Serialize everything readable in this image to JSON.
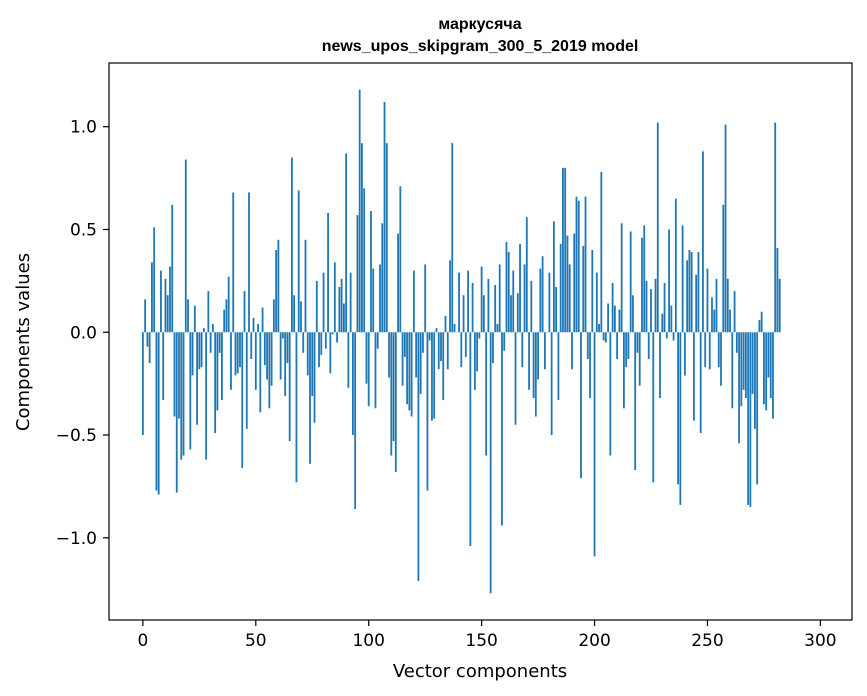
{
  "chart_data": {
    "type": "bar",
    "title": "маркусяча",
    "subtitle": "news_upos_skipgram_300_5_2019 model",
    "xlabel": "Vector components",
    "ylabel": "Components values",
    "xlim": [
      -15,
      314
    ],
    "ylim": [
      -1.4,
      1.31
    ],
    "xticks": [
      0,
      50,
      100,
      150,
      200,
      250,
      300
    ],
    "yticks": [
      -1.0,
      -0.5,
      0.0,
      0.5,
      1.0
    ],
    "ytick_labels": [
      "−1.0",
      "−0.5",
      "0.0",
      "0.5",
      "1.0"
    ],
    "bar_color": "#1f77b4",
    "grid": false,
    "values": [
      -0.5,
      0.16,
      -0.07,
      -0.15,
      0.34,
      0.51,
      -0.77,
      -0.79,
      0.3,
      -0.33,
      0.26,
      0.18,
      0.32,
      0.62,
      -0.41,
      -0.78,
      -0.42,
      -0.62,
      -0.6,
      0.84,
      0.16,
      -0.57,
      -0.21,
      0.13,
      -0.45,
      -0.18,
      -0.17,
      0.02,
      -0.62,
      0.2,
      -0.1,
      0.04,
      -0.49,
      -0.38,
      -0.1,
      -0.33,
      0.11,
      0.16,
      0.27,
      -0.28,
      0.68,
      -0.21,
      -0.2,
      -0.17,
      -0.66,
      0.2,
      -0.47,
      0.68,
      -0.13,
      0.07,
      -0.28,
      0.04,
      -0.39,
      0.12,
      -0.16,
      -0.23,
      -0.37,
      -0.26,
      0.16,
      0.4,
      0.45,
      -0.23,
      -0.03,
      -0.31,
      -0.15,
      -0.53,
      0.85,
      0.18,
      -0.73,
      0.69,
      0.15,
      -0.1,
      0.45,
      -0.21,
      -0.64,
      -0.31,
      -0.44,
      0.25,
      -0.17,
      -0.11,
      0.29,
      -0.08,
      0.58,
      -0.2,
      -0.01,
      0.34,
      -0.05,
      0.22,
      0.26,
      0.14,
      0.87,
      -0.27,
      0.29,
      -0.5,
      -0.86,
      0.57,
      1.18,
      0.92,
      0.7,
      -0.25,
      -0.36,
      0.59,
      0.31,
      -0.37,
      -0.08,
      0.33,
      0.53,
      1.12,
      0.92,
      -0.22,
      -0.6,
      -0.53,
      -0.68,
      0.48,
      0.71,
      -0.26,
      -0.12,
      -0.35,
      -0.38,
      -0.41,
      0.3,
      -0.22,
      -1.21,
      -0.3,
      -0.1,
      0.33,
      -0.77,
      -0.04,
      -0.43,
      -0.42,
      0.02,
      -0.18,
      -0.14,
      -0.33,
      0.08,
      -0.18,
      0.35,
      0.92,
      0.04,
      0.0,
      0.29,
      -0.17,
      0.18,
      -0.12,
      0.3,
      -1.04,
      0.24,
      -0.28,
      -0.19,
      -0.03,
      0.32,
      0.18,
      -0.6,
      0.26,
      -1.27,
      -0.15,
      0.23,
      0.04,
      0.33,
      -0.94,
      -0.09,
      0.44,
      0.39,
      0.18,
      0.3,
      -0.45,
      0.19,
      0.43,
      -0.17,
      0.33,
      0.56,
      -0.28,
      0.25,
      -0.32,
      -0.41,
      -0.23,
      0.31,
      0.37,
      -0.18,
      0.0,
      0.29,
      -0.5,
      0.54,
      0.22,
      -0.33,
      0.43,
      0.8,
      0.8,
      0.47,
      0.33,
      -0.18,
      0.48,
      0.66,
      0.64,
      -0.71,
      0.42,
      0.66,
      -0.13,
      -0.32,
      0.4,
      -1.09,
      0.29,
      0.04,
      0.78,
      -0.04,
      -0.05,
      0.14,
      -0.6,
      0.24,
      0.13,
      -0.13,
      0.11,
      0.53,
      -0.37,
      -0.17,
      -0.13,
      0.49,
      0.18,
      -0.67,
      -0.1,
      -0.26,
      0.46,
      0.52,
      0.25,
      -0.13,
      0.21,
      -0.73,
      0.26,
      1.02,
      -0.32,
      0.09,
      0.24,
      -0.03,
      0.5,
      0.13,
      -0.04,
      0.65,
      -0.74,
      -0.84,
      0.52,
      -0.21,
      0.35,
      0.4,
      0.39,
      -0.43,
      0.28,
      0.39,
      -0.49,
      0.88,
      -0.17,
      0.31,
      -0.18,
      0.17,
      0.11,
      0.26,
      -0.17,
      -0.26,
      0.62,
      1.01,
      0.26,
      0.11,
      -0.37,
      0.2,
      -0.1,
      -0.54,
      -0.36,
      -0.28,
      -0.32,
      -0.84,
      -0.85,
      -0.3,
      -0.47,
      -0.74,
      0.06,
      0.1,
      -0.35,
      -0.38,
      -0.22,
      -0.32,
      -0.42,
      1.02,
      0.41,
      0.26
    ]
  }
}
